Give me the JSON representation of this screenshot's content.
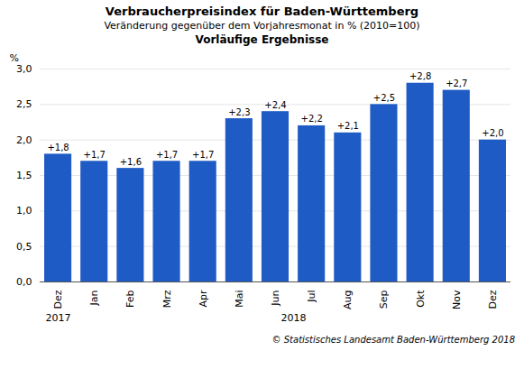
{
  "chart_data": {
    "type": "bar",
    "title": "Verbraucherpreisindex für Baden-Württemberg",
    "subtitle": "Veränderung gegenüber dem Vorjahresmonat in % (2010=100)",
    "annotations": [
      {
        "text": "Vorläufige Ergebnisse"
      },
      {
        "text": "2017",
        "x": 0
      },
      {
        "text": "2018",
        "x": 6.5
      }
    ],
    "caption": "© Statistisches Landesamt Baden-Württemberg 2018",
    "y_label": "%",
    "categories": [
      "Dez",
      "Jan",
      "Feb",
      "Mrz",
      "Apr",
      "Mai",
      "Jun",
      "Jul",
      "Aug",
      "Sep",
      "Okt",
      "Nov",
      "Dez"
    ],
    "values": [
      1.8,
      1.7,
      1.6,
      1.7,
      1.7,
      2.3,
      2.4,
      2.2,
      2.1,
      2.5,
      2.8,
      2.7,
      2.0
    ],
    "value_labels": [
      "+1,8",
      "+1,7",
      "+1,6",
      "+1,7",
      "+1,7",
      "+2,3",
      "+2,4",
      "+2,2",
      "+2,1",
      "+2,5",
      "+2,8",
      "+2,7",
      "+2,0"
    ],
    "data_labels": true,
    "color": "#1F5BC4",
    "ylim": [
      0.0,
      3.0
    ],
    "yticks": [
      {
        "value": 0.0,
        "label": "0,0"
      },
      {
        "value": 0.5,
        "label": "0,5"
      },
      {
        "value": 1.0,
        "label": "1,0"
      },
      {
        "value": 1.5,
        "label": "1,5"
      },
      {
        "value": 2.0,
        "label": "2,0"
      },
      {
        "value": 2.5,
        "label": "2,5"
      },
      {
        "value": 3.0,
        "label": "3,0"
      }
    ],
    "grid": true
  }
}
